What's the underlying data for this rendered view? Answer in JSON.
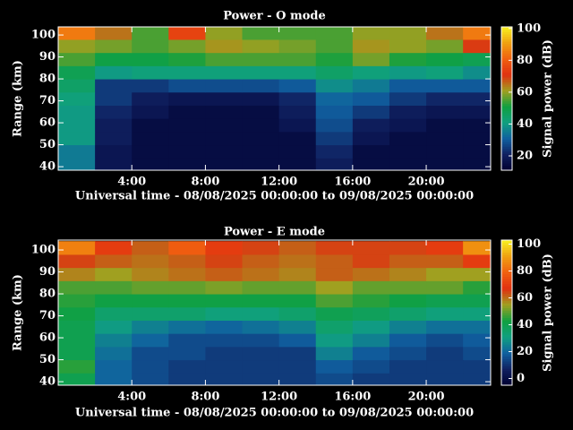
{
  "chart_data": [
    {
      "type": "heatmap",
      "title": "Power - O mode",
      "x_label": "Universal time - 08/08/2025 00:00:00 to 09/08/2025 00:00:00",
      "y_label": "Range (km)",
      "colorbar_label": "Signal power (dB)",
      "x_bins": [
        0,
        2,
        4,
        6,
        8,
        10,
        12,
        14,
        16,
        18,
        20,
        22,
        24
      ],
      "y_bins": [
        38,
        44,
        50,
        56,
        62,
        68,
        74,
        80,
        86,
        92,
        98,
        104
      ],
      "values": [
        [
          35,
          18,
          15,
          15,
          15,
          15,
          15,
          20,
          15,
          15,
          15,
          15
        ],
        [
          35,
          18,
          15,
          15,
          15,
          15,
          15,
          22,
          15,
          15,
          15,
          15
        ],
        [
          40,
          20,
          15,
          15,
          15,
          15,
          15,
          25,
          18,
          15,
          15,
          15
        ],
        [
          40,
          20,
          15,
          15,
          15,
          15,
          18,
          28,
          20,
          18,
          15,
          15
        ],
        [
          40,
          22,
          18,
          15,
          15,
          15,
          20,
          30,
          25,
          20,
          18,
          18
        ],
        [
          42,
          25,
          20,
          18,
          18,
          18,
          22,
          32,
          30,
          25,
          22,
          22
        ],
        [
          45,
          25,
          25,
          28,
          28,
          28,
          30,
          38,
          35,
          30,
          30,
          30
        ],
        [
          48,
          40,
          42,
          42,
          42,
          42,
          42,
          45,
          42,
          40,
          42,
          38
        ],
        [
          55,
          50,
          50,
          52,
          55,
          55,
          55,
          52,
          58,
          52,
          50,
          48
        ],
        [
          60,
          58,
          55,
          58,
          62,
          60,
          58,
          55,
          62,
          60,
          58,
          70
        ],
        [
          85,
          65,
          55,
          75,
          60,
          55,
          55,
          55,
          60,
          60,
          65,
          85
        ]
      ],
      "xlim": [
        0,
        23.5
      ],
      "ylim": [
        38.4,
        103.7
      ],
      "xticks": [
        {
          "value": 4,
          "label": "4:00"
        },
        {
          "value": 8,
          "label": "8:00"
        },
        {
          "value": 12,
          "label": "12:00"
        },
        {
          "value": 16,
          "label": "16:00"
        },
        {
          "value": 20,
          "label": "20:00"
        }
      ],
      "yticks": [
        40,
        50,
        60,
        70,
        80,
        90,
        100
      ],
      "clim": [
        11,
        101
      ],
      "cticks": [
        20,
        40,
        60,
        80,
        100
      ],
      "colorscale": [
        "#000030",
        "#102060",
        "#1060a0",
        "#10a080",
        "#10a040",
        "#a0a020",
        "#e03010",
        "#f06010",
        "#f0a010",
        "#f8f020"
      ]
    },
    {
      "type": "heatmap",
      "title": "Power - E mode",
      "x_label": "Universal time - 08/08/2025 00:00:00 to 09/08/2025 00:00:00",
      "y_label": "Range (km)",
      "colorbar_label": "Signal power (dB)",
      "x_bins": [
        0,
        2,
        4,
        6,
        8,
        10,
        12,
        14,
        16,
        18,
        20,
        22,
        24
      ],
      "y_bins": [
        38,
        44,
        50,
        56,
        62,
        68,
        74,
        80,
        86,
        92,
        98,
        104
      ],
      "values": [
        [
          40,
          20,
          15,
          12,
          12,
          12,
          12,
          15,
          12,
          12,
          12,
          12
        ],
        [
          45,
          20,
          15,
          12,
          12,
          12,
          12,
          18,
          15,
          12,
          12,
          12
        ],
        [
          40,
          22,
          15,
          15,
          12,
          12,
          12,
          25,
          18,
          15,
          12,
          15
        ],
        [
          40,
          25,
          20,
          15,
          15,
          15,
          18,
          30,
          25,
          18,
          15,
          18
        ],
        [
          40,
          30,
          25,
          22,
          20,
          22,
          25,
          35,
          30,
          25,
          22,
          22
        ],
        [
          42,
          35,
          35,
          35,
          32,
          32,
          35,
          40,
          38,
          35,
          32,
          32
        ],
        [
          45,
          42,
          42,
          42,
          42,
          42,
          42,
          48,
          45,
          42,
          40,
          40
        ],
        [
          48,
          48,
          50,
          50,
          52,
          50,
          50,
          55,
          50,
          50,
          50,
          45
        ],
        [
          58,
          55,
          58,
          60,
          62,
          60,
          58,
          62,
          60,
          58,
          55,
          55
        ],
        [
          65,
          62,
          60,
          62,
          65,
          62,
          60,
          62,
          65,
          62,
          62,
          70
        ],
        [
          85,
          70,
          62,
          78,
          70,
          65,
          62,
          65,
          65,
          65,
          70,
          88
        ]
      ],
      "xlim": [
        0,
        23.5
      ],
      "ylim": [
        38.4,
        104.5
      ],
      "xticks": [
        {
          "value": 4,
          "label": "4:00"
        },
        {
          "value": 8,
          "label": "8:00"
        },
        {
          "value": 12,
          "label": "12:00"
        },
        {
          "value": 16,
          "label": "16:00"
        },
        {
          "value": 20,
          "label": "20:00"
        }
      ],
      "yticks": [
        40,
        50,
        60,
        70,
        80,
        90,
        100
      ],
      "clim": [
        -5,
        103
      ],
      "cticks": [
        0,
        20,
        40,
        60,
        80,
        100
      ],
      "colorscale": [
        "#000030",
        "#102060",
        "#1060a0",
        "#10a080",
        "#10a040",
        "#a0a020",
        "#e03010",
        "#f06010",
        "#f0a010",
        "#f8f020"
      ]
    }
  ]
}
